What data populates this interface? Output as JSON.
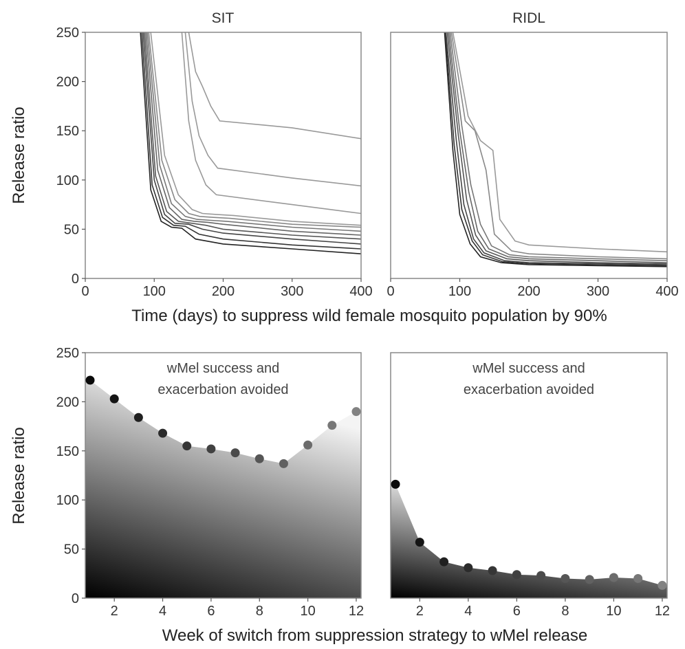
{
  "chart_data": [
    {
      "type": "line",
      "panel": "top-left",
      "title": "SIT",
      "ylabel": "Release ratio",
      "xlim": [
        0,
        400
      ],
      "ylim": [
        0,
        250
      ],
      "xticks": [
        "0",
        "100",
        "200",
        "300",
        "400"
      ],
      "yticks": [
        "0",
        "50",
        "100",
        "150",
        "200",
        "250"
      ],
      "series": [
        {
          "color": "#222222",
          "x": [
            80,
            95,
            110,
            125,
            140,
            160,
            200,
            300,
            400
          ],
          "y": [
            250,
            90,
            58,
            52,
            51,
            40,
            35,
            30,
            25
          ]
        },
        {
          "color": "#333333",
          "x": [
            82,
            97,
            112,
            128,
            145,
            165,
            200,
            300,
            400
          ],
          "y": [
            250,
            95,
            62,
            54,
            53,
            45,
            40,
            34,
            30
          ]
        },
        {
          "color": "#444444",
          "x": [
            84,
            100,
            115,
            130,
            150,
            170,
            200,
            300,
            400
          ],
          "y": [
            250,
            100,
            65,
            56,
            55,
            50,
            46,
            40,
            35
          ]
        },
        {
          "color": "#555555",
          "x": [
            86,
            102,
            118,
            135,
            155,
            175,
            200,
            300,
            400
          ],
          "y": [
            250,
            104,
            68,
            58,
            56,
            54,
            50,
            44,
            40
          ]
        },
        {
          "color": "#666666",
          "x": [
            88,
            105,
            122,
            140,
            158,
            178,
            200,
            300,
            400
          ],
          "y": [
            250,
            110,
            72,
            60,
            58,
            57,
            55,
            48,
            44
          ]
        },
        {
          "color": "#777777",
          "x": [
            90,
            108,
            125,
            145,
            162,
            182,
            205,
            300,
            400
          ],
          "y": [
            250,
            115,
            76,
            63,
            60,
            59,
            58,
            52,
            48
          ]
        },
        {
          "color": "#888888",
          "x": [
            92,
            111,
            130,
            150,
            166,
            186,
            210,
            300,
            400
          ],
          "y": [
            250,
            120,
            80,
            66,
            63,
            62,
            61,
            55,
            52
          ]
        },
        {
          "color": "#999999",
          "x": [
            95,
            115,
            135,
            155,
            170,
            190,
            215,
            300,
            400
          ],
          "y": [
            250,
            125,
            85,
            70,
            66,
            65,
            64,
            58,
            54
          ]
        },
        {
          "color": "#999999",
          "x": [
            140,
            150,
            160,
            175,
            190,
            300,
            400
          ],
          "y": [
            250,
            160,
            120,
            95,
            85,
            75,
            66
          ]
        },
        {
          "color": "#999999",
          "x": [
            145,
            155,
            165,
            178,
            192,
            300,
            400
          ],
          "y": [
            250,
            180,
            145,
            125,
            112,
            102,
            94
          ]
        },
        {
          "color": "#999999",
          "x": [
            150,
            160,
            170,
            182,
            195,
            300,
            400
          ],
          "y": [
            250,
            210,
            195,
            175,
            160,
            153,
            142
          ]
        }
      ]
    },
    {
      "type": "line",
      "panel": "top-right",
      "title": "RIDL",
      "xlim": [
        0,
        400
      ],
      "ylim": [
        0,
        250
      ],
      "xticks": [
        "0",
        "100",
        "200",
        "300",
        "400"
      ],
      "series": [
        {
          "color": "#222222",
          "x": [
            78,
            90,
            100,
            115,
            130,
            160,
            200,
            300,
            400
          ],
          "y": [
            250,
            130,
            65,
            35,
            22,
            16,
            14,
            13,
            12
          ]
        },
        {
          "color": "#333333",
          "x": [
            79,
            92,
            103,
            118,
            133,
            162,
            200,
            300,
            400
          ],
          "y": [
            250,
            135,
            70,
            38,
            24,
            17,
            15,
            14,
            13
          ]
        },
        {
          "color": "#444444",
          "x": [
            80,
            95,
            106,
            120,
            135,
            165,
            200,
            300,
            400
          ],
          "y": [
            250,
            140,
            75,
            40,
            26,
            18,
            16,
            15,
            14
          ]
        },
        {
          "color": "#555555",
          "x": [
            82,
            98,
            110,
            123,
            138,
            168,
            200,
            300,
            400
          ],
          "y": [
            250,
            145,
            80,
            44,
            28,
            20,
            18,
            16,
            15
          ]
        },
        {
          "color": "#666666",
          "x": [
            84,
            100,
            113,
            126,
            142,
            170,
            200,
            300,
            400
          ],
          "y": [
            250,
            150,
            88,
            48,
            30,
            22,
            20,
            18,
            16
          ]
        },
        {
          "color": "#777777",
          "x": [
            86,
            103,
            116,
            130,
            146,
            172,
            200,
            300,
            400
          ],
          "y": [
            250,
            155,
            95,
            55,
            33,
            24,
            22,
            20,
            18
          ]
        },
        {
          "color": "#888888",
          "x": [
            88,
            108,
            122,
            138,
            150,
            175,
            200,
            300,
            400
          ],
          "y": [
            250,
            160,
            150,
            110,
            45,
            28,
            25,
            22,
            20
          ]
        },
        {
          "color": "#999999",
          "x": [
            90,
            112,
            130,
            148,
            158,
            180,
            200,
            300,
            400
          ],
          "y": [
            250,
            165,
            140,
            130,
            60,
            38,
            34,
            30,
            27
          ]
        }
      ]
    },
    {
      "type": "scatter",
      "panel": "bottom-left",
      "ylabel": "Release ratio",
      "xlim": [
        0.8,
        12.2
      ],
      "ylim": [
        0,
        250
      ],
      "xticks": [
        "2",
        "4",
        "6",
        "8",
        "10",
        "12"
      ],
      "yticks": [
        "0",
        "50",
        "100",
        "150",
        "200",
        "250"
      ],
      "annotation": [
        "wMel success and",
        "exacerbation avoided"
      ],
      "x": [
        1,
        2,
        3,
        4,
        5,
        6,
        7,
        8,
        9,
        10,
        11,
        12
      ],
      "y": [
        222,
        203,
        184,
        168,
        155,
        152,
        148,
        142,
        137,
        156,
        176,
        190
      ]
    },
    {
      "type": "scatter",
      "panel": "bottom-right",
      "xlim": [
        0.8,
        12.2
      ],
      "ylim": [
        0,
        250
      ],
      "xticks": [
        "2",
        "4",
        "6",
        "8",
        "10",
        "12"
      ],
      "annotation": [
        "wMel success and",
        "exacerbation avoided"
      ],
      "x": [
        1,
        2,
        3,
        4,
        5,
        6,
        7,
        8,
        9,
        10,
        11,
        12
      ],
      "y": [
        116,
        57,
        37,
        31,
        28,
        24,
        23,
        20,
        19,
        21,
        20,
        13
      ]
    }
  ],
  "labels": {
    "top_xlabel": "Time (days) to suppress wild female mosquito population by 90%",
    "bottom_xlabel": "Week of switch from suppression strategy to wMel release"
  }
}
